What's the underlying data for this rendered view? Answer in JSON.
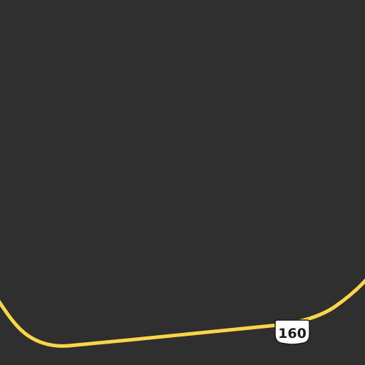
{
  "map": {
    "background_color": "#2f2f2f",
    "roads": [
      {
        "type": "us-highway",
        "color": "#fcd548",
        "shield": {
          "label": "160",
          "shield_color": "#ffffff",
          "text_color": "#1a1a1a",
          "icon": "us-route-shield-icon"
        }
      }
    ]
  }
}
